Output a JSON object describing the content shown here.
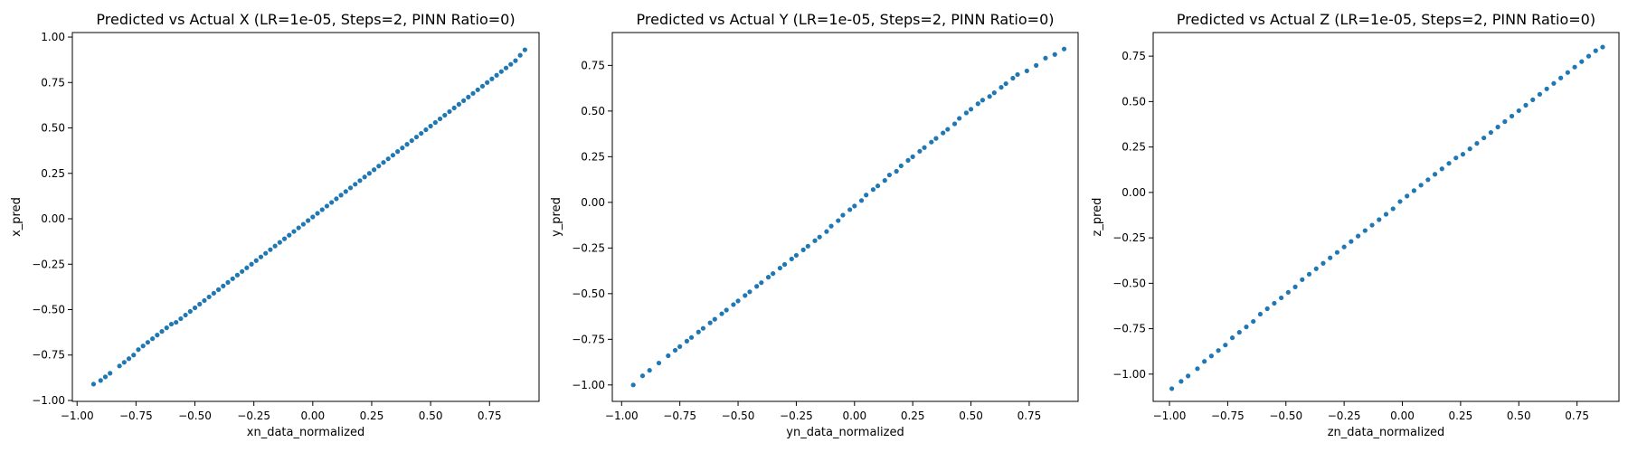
{
  "chart_data": [
    {
      "type": "scatter",
      "title": "Predicted vs Actual X (LR=1e-05, Steps=2, PINN Ratio=0)",
      "xlabel": "xn_data_normalized",
      "ylabel": "x_pred",
      "xlim": [
        -1.02,
        0.96
      ],
      "ylim": [
        -1.005,
        1.025
      ],
      "xticks": [
        -1.0,
        -0.75,
        -0.5,
        -0.25,
        0.0,
        0.25,
        0.5,
        0.75
      ],
      "xtick_labels": [
        "−1.00",
        "−0.75",
        "−0.50",
        "−0.25",
        "0.00",
        "0.25",
        "0.50",
        "0.75"
      ],
      "yticks": [
        -1.0,
        -0.75,
        -0.5,
        -0.25,
        0.0,
        0.25,
        0.5,
        0.75,
        1.0
      ],
      "ytick_labels": [
        "−1.00",
        "−0.75",
        "−0.50",
        "−0.25",
        "0.00",
        "0.25",
        "0.50",
        "0.75",
        "1.00"
      ],
      "color": "#1f77b4",
      "x": [
        -0.93,
        -0.9,
        -0.88,
        -0.86,
        -0.82,
        -0.8,
        -0.78,
        -0.76,
        -0.74,
        -0.72,
        -0.7,
        -0.68,
        -0.66,
        -0.64,
        -0.62,
        -0.6,
        -0.58,
        -0.56,
        -0.54,
        -0.52,
        -0.5,
        -0.48,
        -0.46,
        -0.44,
        -0.42,
        -0.4,
        -0.38,
        -0.36,
        -0.34,
        -0.32,
        -0.3,
        -0.28,
        -0.26,
        -0.24,
        -0.22,
        -0.2,
        -0.18,
        -0.16,
        -0.14,
        -0.12,
        -0.1,
        -0.08,
        -0.06,
        -0.04,
        -0.02,
        0.0,
        0.02,
        0.04,
        0.06,
        0.08,
        0.1,
        0.12,
        0.14,
        0.16,
        0.18,
        0.2,
        0.22,
        0.24,
        0.26,
        0.28,
        0.3,
        0.32,
        0.34,
        0.36,
        0.38,
        0.4,
        0.42,
        0.44,
        0.46,
        0.48,
        0.5,
        0.52,
        0.54,
        0.56,
        0.58,
        0.6,
        0.62,
        0.64,
        0.66,
        0.68,
        0.7,
        0.72,
        0.74,
        0.76,
        0.78,
        0.8,
        0.82,
        0.84,
        0.86,
        0.88,
        0.9
      ],
      "y": [
        -0.91,
        -0.89,
        -0.87,
        -0.85,
        -0.81,
        -0.79,
        -0.77,
        -0.75,
        -0.72,
        -0.7,
        -0.68,
        -0.66,
        -0.64,
        -0.62,
        -0.6,
        -0.58,
        -0.57,
        -0.55,
        -0.53,
        -0.51,
        -0.49,
        -0.47,
        -0.45,
        -0.43,
        -0.41,
        -0.39,
        -0.37,
        -0.35,
        -0.33,
        -0.31,
        -0.29,
        -0.27,
        -0.25,
        -0.23,
        -0.21,
        -0.19,
        -0.17,
        -0.15,
        -0.13,
        -0.11,
        -0.09,
        -0.07,
        -0.05,
        -0.03,
        -0.01,
        0.01,
        0.03,
        0.05,
        0.07,
        0.09,
        0.11,
        0.13,
        0.15,
        0.17,
        0.19,
        0.21,
        0.23,
        0.25,
        0.27,
        0.29,
        0.31,
        0.33,
        0.35,
        0.37,
        0.39,
        0.41,
        0.43,
        0.45,
        0.47,
        0.49,
        0.51,
        0.53,
        0.55,
        0.57,
        0.59,
        0.61,
        0.63,
        0.65,
        0.67,
        0.69,
        0.71,
        0.73,
        0.75,
        0.77,
        0.79,
        0.81,
        0.83,
        0.85,
        0.87,
        0.9,
        0.93
      ]
    },
    {
      "type": "scatter",
      "title": "Predicted vs Actual Y (LR=1e-05, Steps=2, PINN Ratio=0)",
      "xlabel": "yn_data_normalized",
      "ylabel": "y_pred",
      "xlim": [
        -1.04,
        0.96
      ],
      "ylim": [
        -1.09,
        0.93
      ],
      "xticks": [
        -1.0,
        -0.75,
        -0.5,
        -0.25,
        0.0,
        0.25,
        0.5,
        0.75
      ],
      "xtick_labels": [
        "−1.00",
        "−0.75",
        "−0.50",
        "−0.25",
        "0.00",
        "0.25",
        "0.50",
        "0.75"
      ],
      "yticks": [
        -1.0,
        -0.75,
        -0.5,
        -0.25,
        0.0,
        0.25,
        0.5,
        0.75
      ],
      "ytick_labels": [
        "−1.00",
        "−0.75",
        "−0.50",
        "−0.25",
        "0.00",
        "0.25",
        "0.50",
        "0.75"
      ],
      "color": "#1f77b4",
      "x": [
        -0.95,
        -0.91,
        -0.88,
        -0.84,
        -0.8,
        -0.77,
        -0.75,
        -0.72,
        -0.7,
        -0.67,
        -0.65,
        -0.62,
        -0.6,
        -0.57,
        -0.55,
        -0.52,
        -0.5,
        -0.47,
        -0.45,
        -0.42,
        -0.4,
        -0.37,
        -0.35,
        -0.32,
        -0.3,
        -0.27,
        -0.25,
        -0.22,
        -0.2,
        -0.17,
        -0.15,
        -0.12,
        -0.1,
        -0.07,
        -0.05,
        -0.02,
        0.0,
        0.03,
        0.05,
        0.08,
        0.1,
        0.13,
        0.15,
        0.18,
        0.2,
        0.23,
        0.25,
        0.28,
        0.3,
        0.33,
        0.35,
        0.38,
        0.4,
        0.43,
        0.45,
        0.48,
        0.5,
        0.53,
        0.55,
        0.58,
        0.6,
        0.63,
        0.65,
        0.68,
        0.7,
        0.74,
        0.78,
        0.82,
        0.86,
        0.9
      ],
      "y": [
        -1.0,
        -0.95,
        -0.92,
        -0.88,
        -0.84,
        -0.81,
        -0.79,
        -0.76,
        -0.74,
        -0.71,
        -0.69,
        -0.66,
        -0.64,
        -0.61,
        -0.59,
        -0.56,
        -0.54,
        -0.51,
        -0.49,
        -0.46,
        -0.44,
        -0.41,
        -0.39,
        -0.36,
        -0.34,
        -0.31,
        -0.29,
        -0.26,
        -0.24,
        -0.21,
        -0.19,
        -0.16,
        -0.13,
        -0.1,
        -0.07,
        -0.04,
        -0.02,
        0.01,
        0.04,
        0.07,
        0.09,
        0.12,
        0.15,
        0.17,
        0.2,
        0.23,
        0.25,
        0.28,
        0.3,
        0.33,
        0.35,
        0.38,
        0.4,
        0.43,
        0.46,
        0.49,
        0.51,
        0.54,
        0.56,
        0.58,
        0.6,
        0.63,
        0.65,
        0.68,
        0.7,
        0.72,
        0.75,
        0.79,
        0.81,
        0.84
      ]
    },
    {
      "type": "scatter",
      "title": "Predicted vs Actual Z (LR=1e-05, Steps=2, PINN Ratio=0)",
      "xlabel": "zn_data_normalized",
      "ylabel": "z_pred",
      "xlim": [
        -1.07,
        0.93
      ],
      "ylim": [
        -1.15,
        0.88
      ],
      "xticks": [
        -1.0,
        -0.75,
        -0.5,
        -0.25,
        0.0,
        0.25,
        0.5,
        0.75
      ],
      "xtick_labels": [
        "−1.00",
        "−0.75",
        "−0.50",
        "−0.25",
        "0.00",
        "0.25",
        "0.50",
        "0.75"
      ],
      "yticks": [
        -1.0,
        -0.75,
        -0.5,
        -0.25,
        0.0,
        0.25,
        0.5,
        0.75
      ],
      "ytick_labels": [
        "−1.00",
        "−0.75",
        "−0.50",
        "−0.25",
        "0.00",
        "0.25",
        "0.50",
        "0.75"
      ],
      "color": "#1f77b4",
      "x": [
        -0.99,
        -0.95,
        -0.92,
        -0.88,
        -0.85,
        -0.82,
        -0.79,
        -0.76,
        -0.73,
        -0.7,
        -0.67,
        -0.64,
        -0.61,
        -0.58,
        -0.55,
        -0.52,
        -0.49,
        -0.46,
        -0.43,
        -0.4,
        -0.37,
        -0.34,
        -0.31,
        -0.28,
        -0.25,
        -0.22,
        -0.19,
        -0.16,
        -0.13,
        -0.1,
        -0.07,
        -0.04,
        -0.01,
        0.02,
        0.05,
        0.08,
        0.11,
        0.14,
        0.17,
        0.2,
        0.23,
        0.26,
        0.29,
        0.32,
        0.35,
        0.38,
        0.41,
        0.44,
        0.47,
        0.5,
        0.53,
        0.56,
        0.59,
        0.62,
        0.65,
        0.68,
        0.71,
        0.74,
        0.77,
        0.8,
        0.83,
        0.86
      ],
      "y": [
        -1.08,
        -1.04,
        -1.01,
        -0.97,
        -0.93,
        -0.9,
        -0.87,
        -0.84,
        -0.8,
        -0.77,
        -0.74,
        -0.71,
        -0.67,
        -0.64,
        -0.61,
        -0.58,
        -0.55,
        -0.52,
        -0.48,
        -0.45,
        -0.42,
        -0.39,
        -0.36,
        -0.33,
        -0.3,
        -0.27,
        -0.24,
        -0.21,
        -0.18,
        -0.15,
        -0.12,
        -0.09,
        -0.05,
        -0.02,
        0.01,
        0.04,
        0.07,
        0.1,
        0.13,
        0.16,
        0.19,
        0.21,
        0.24,
        0.27,
        0.3,
        0.33,
        0.36,
        0.39,
        0.42,
        0.45,
        0.48,
        0.51,
        0.54,
        0.57,
        0.6,
        0.63,
        0.66,
        0.69,
        0.72,
        0.75,
        0.78,
        0.8
      ]
    }
  ]
}
